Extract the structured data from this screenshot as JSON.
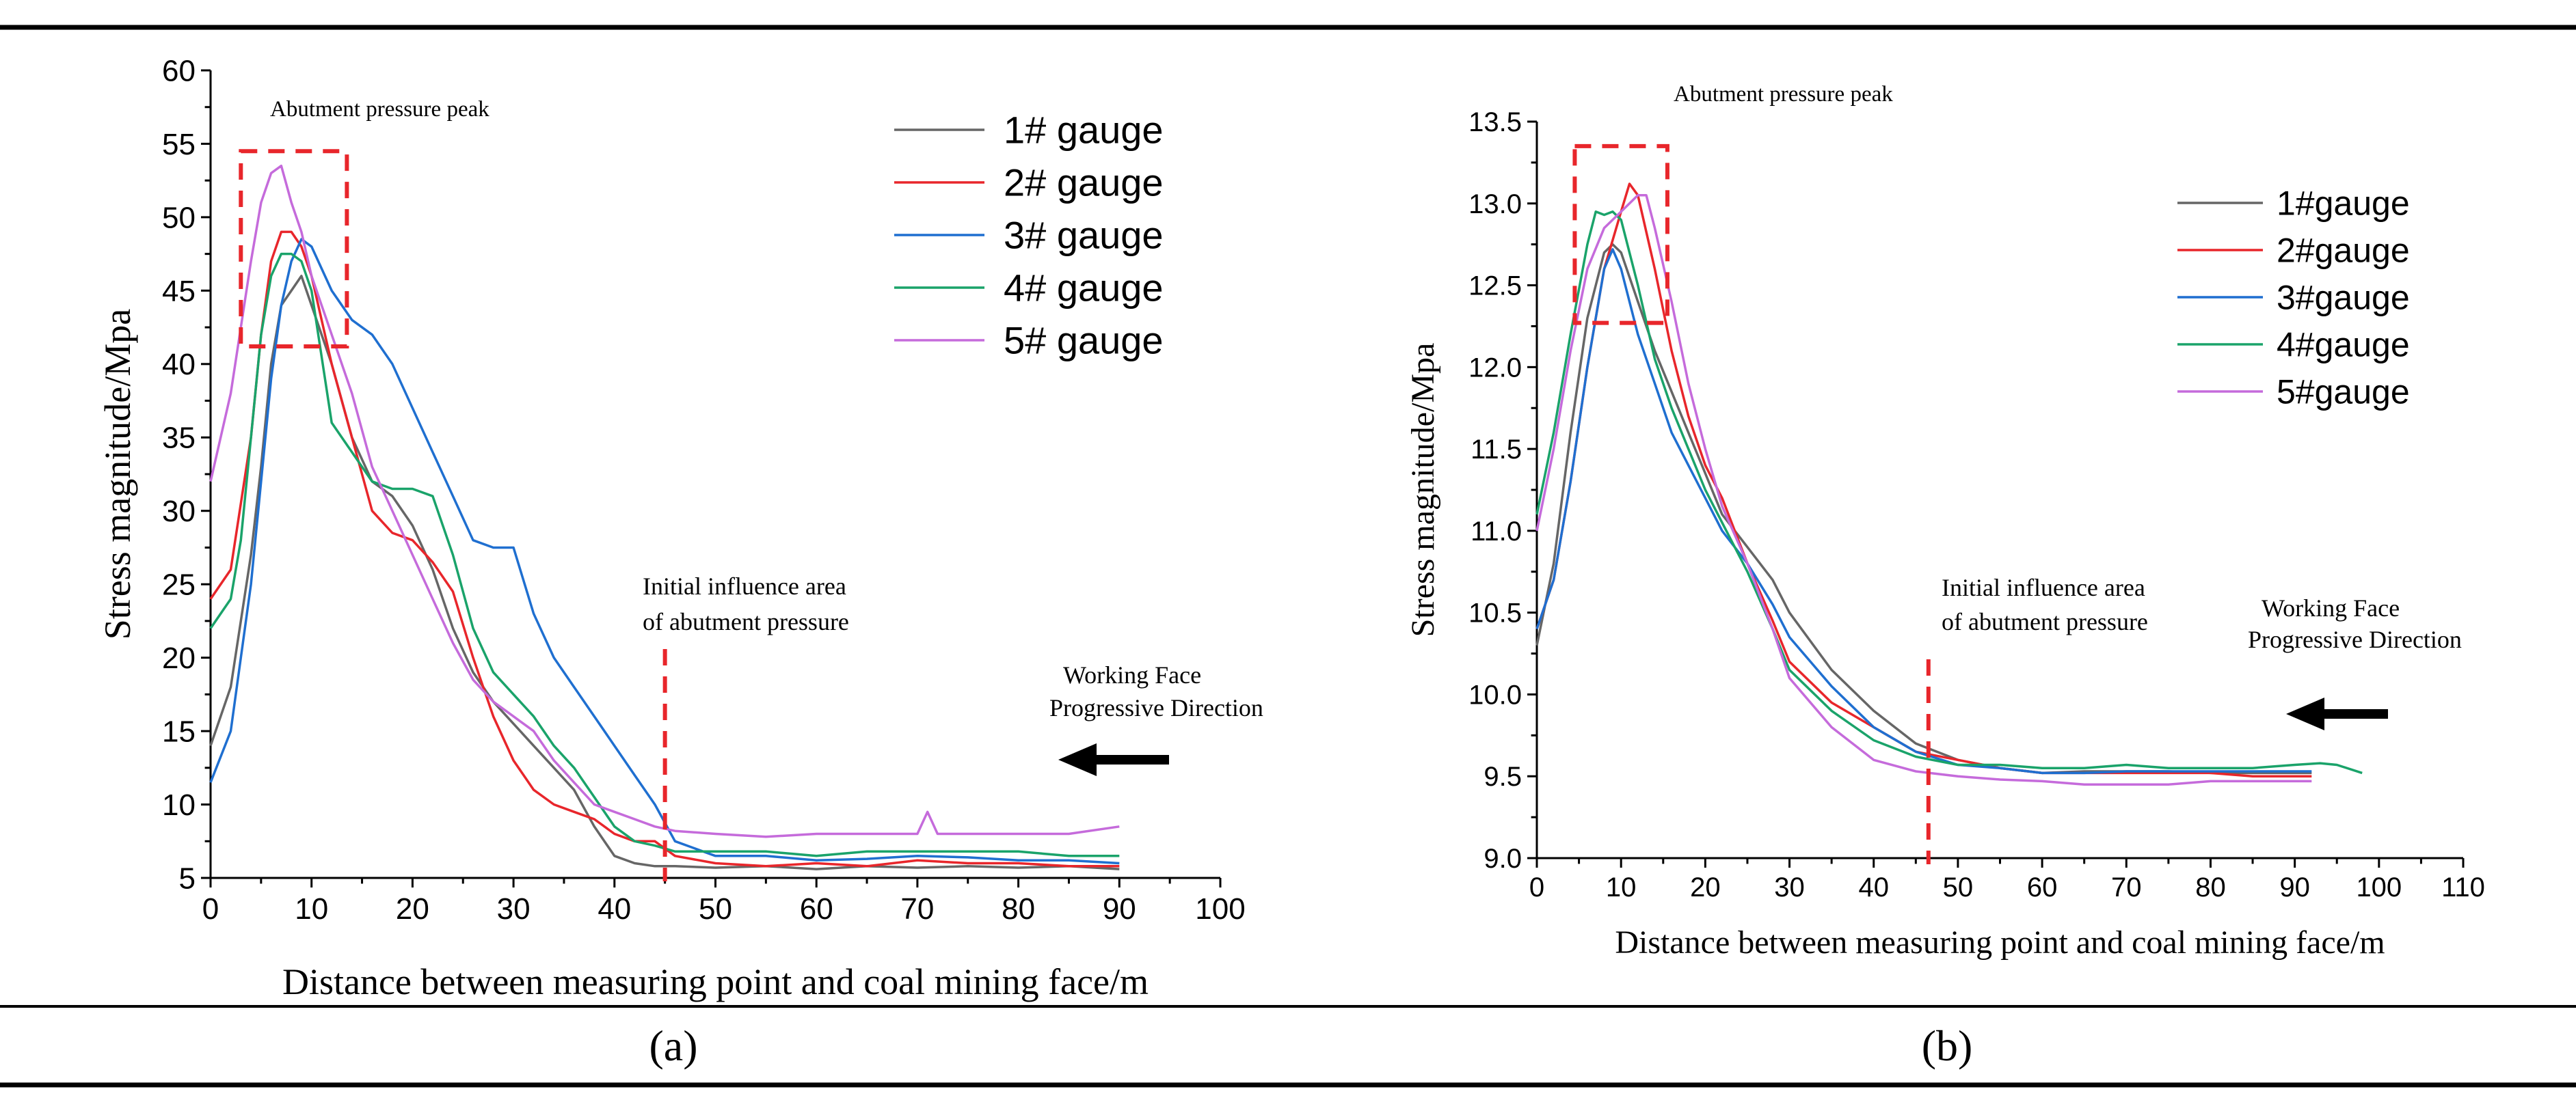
{
  "panel_labels": [
    "(a)",
    "(b)"
  ],
  "chart_data": [
    {
      "type": "line",
      "xlabel": "Distance between measuring point and coal mining face/m",
      "ylabel": "Stress magnitude/Mpa",
      "xlim": [
        0,
        100
      ],
      "ylim": [
        5,
        60
      ],
      "xticks": [
        0,
        10,
        20,
        30,
        40,
        50,
        60,
        70,
        80,
        90,
        100
      ],
      "yticks": [
        5,
        10,
        15,
        20,
        25,
        30,
        35,
        40,
        45,
        50,
        55,
        60
      ],
      "grid": false,
      "legend_position": "top-right",
      "annotations": {
        "peak_label": "Abutment pressure peak",
        "influence_line1": "Initial influence area",
        "influence_line2": "of abutment pressure",
        "influence_x": 45,
        "direction_line1": "Working Face",
        "direction_line2": "Progressive Direction",
        "peak_box": {
          "x": [
            3,
            13.5
          ],
          "y": [
            41.2,
            54.5
          ]
        }
      },
      "series": [
        {
          "name": "1# gauge",
          "color": "#666666",
          "x": [
            0,
            2,
            4,
            5,
            6,
            7,
            8,
            9,
            10,
            12,
            14,
            16,
            18,
            20,
            22,
            24,
            26,
            28,
            30,
            32,
            34,
            36,
            38,
            40,
            42,
            44,
            46,
            50,
            55,
            60,
            65,
            70,
            75,
            80,
            85,
            90
          ],
          "y": [
            14,
            18,
            27,
            33,
            40,
            44,
            45,
            46,
            44,
            40,
            35,
            32,
            31,
            29,
            26,
            22,
            19,
            17,
            15.5,
            14,
            12.5,
            11,
            8.5,
            6.5,
            6,
            5.8,
            5.8,
            5.7,
            5.8,
            5.6,
            5.8,
            5.7,
            5.8,
            5.7,
            5.8,
            5.6
          ]
        },
        {
          "name": "2# gauge",
          "color": "#e8262b",
          "x": [
            0,
            2,
            4,
            5,
            6,
            7,
            8,
            9,
            10,
            12,
            14,
            16,
            18,
            20,
            22,
            24,
            26,
            28,
            30,
            31,
            32,
            34,
            36,
            38,
            40,
            42,
            44,
            46,
            50,
            55,
            60,
            65,
            70,
            75,
            80,
            85,
            90
          ],
          "y": [
            24,
            26,
            35,
            42,
            47,
            49,
            49,
            48,
            46,
            40,
            35,
            30,
            28.5,
            28,
            26.5,
            24.5,
            20,
            16,
            13,
            12,
            11,
            10,
            9.5,
            9,
            8,
            7.5,
            7.5,
            6.5,
            6,
            5.8,
            6,
            5.8,
            6.2,
            6,
            6,
            5.8,
            5.8
          ]
        },
        {
          "name": "3# gauge",
          "color": "#1f6fd0",
          "x": [
            0,
            2,
            3,
            4,
            5,
            6,
            7,
            8,
            9,
            10,
            12,
            14,
            16,
            18,
            20,
            22,
            24,
            26,
            28,
            30,
            32,
            34,
            36,
            38,
            40,
            42,
            44,
            46,
            50,
            55,
            60,
            65,
            70,
            75,
            80,
            85,
            90
          ],
          "y": [
            11.5,
            15,
            20,
            25,
            32,
            39,
            44,
            47,
            48.5,
            48,
            45,
            43,
            42,
            40,
            37,
            34,
            31,
            28,
            27.5,
            27.5,
            23,
            20,
            18,
            16,
            14,
            12,
            10,
            7.5,
            6.5,
            6.5,
            6.2,
            6.3,
            6.5,
            6.4,
            6.2,
            6.2,
            6.0
          ]
        },
        {
          "name": "4# gauge",
          "color": "#1aa36a",
          "x": [
            0,
            2,
            3,
            4,
            5,
            6,
            7,
            8,
            9,
            10,
            12,
            14,
            16,
            18,
            20,
            22,
            24,
            26,
            28,
            30,
            32,
            34,
            36,
            38,
            40,
            42,
            44,
            46,
            50,
            55,
            60,
            65,
            70,
            75,
            80,
            85,
            90
          ],
          "y": [
            22,
            24,
            28,
            35,
            42,
            46,
            47.5,
            47.5,
            47,
            45,
            36,
            34,
            32,
            31.5,
            31.5,
            31,
            27,
            22,
            19,
            17.5,
            16,
            14,
            12.5,
            10.5,
            8.5,
            7.5,
            7.2,
            6.8,
            6.8,
            6.8,
            6.5,
            6.8,
            6.8,
            6.8,
            6.8,
            6.5,
            6.5
          ]
        },
        {
          "name": "5# gauge",
          "color": "#c56bdb",
          "x": [
            0,
            2,
            4,
            5,
            6,
            7,
            8,
            9,
            10,
            12,
            14,
            16,
            18,
            20,
            22,
            24,
            26,
            28,
            30,
            32,
            34,
            36,
            38,
            40,
            42,
            44,
            46,
            50,
            55,
            60,
            65,
            70,
            71,
            72,
            75,
            80,
            85,
            90
          ],
          "y": [
            32,
            38,
            47,
            51,
            53,
            53.5,
            51,
            49,
            46,
            42,
            38,
            33,
            30,
            27,
            24,
            21,
            18.5,
            17,
            16,
            15,
            13,
            11.5,
            10,
            9.5,
            9,
            8.5,
            8.2,
            8,
            7.8,
            8,
            8,
            8,
            9.5,
            8,
            8,
            8,
            8,
            8.5
          ]
        }
      ]
    },
    {
      "type": "line",
      "xlabel": "Distance between measuring point and coal mining face/m",
      "ylabel": "Stress magnitude/Mpa",
      "xlim": [
        0,
        110
      ],
      "ylim": [
        9.0,
        13.5
      ],
      "xticks": [
        0,
        10,
        20,
        30,
        40,
        50,
        60,
        70,
        80,
        90,
        100,
        110
      ],
      "yticks": [
        "9.0",
        "9.5",
        "10.0",
        "10.5",
        "11.0",
        "11.5",
        "12.0",
        "12.5",
        "13.0",
        "13.5"
      ],
      "grid": false,
      "legend_position": "top-right",
      "annotations": {
        "peak_label": "Abutment pressure peak",
        "influence_line1": "Initial influence area",
        "influence_line2": "of abutment pressure",
        "influence_x": 46.5,
        "direction_line1": "Working Face",
        "direction_line2": "Progressive Direction",
        "peak_box": {
          "x": [
            4.5,
            15.5
          ],
          "y": [
            12.27,
            13.35
          ]
        }
      },
      "series": [
        {
          "name": "1#gauge",
          "color": "#666666",
          "x": [
            0,
            2,
            4,
            6,
            8,
            9,
            10,
            12,
            14,
            16,
            18,
            20,
            22,
            25,
            28,
            30,
            35,
            40,
            45,
            50,
            55,
            60,
            65,
            70,
            75,
            80,
            85,
            90,
            92
          ],
          "y": [
            10.3,
            10.8,
            11.6,
            12.3,
            12.7,
            12.75,
            12.7,
            12.4,
            12.1,
            11.85,
            11.6,
            11.35,
            11.1,
            10.9,
            10.7,
            10.5,
            10.15,
            9.9,
            9.7,
            9.6,
            9.55,
            9.52,
            9.53,
            9.53,
            9.53,
            9.52,
            9.52,
            9.52,
            9.52
          ]
        },
        {
          "name": "2#gauge",
          "color": "#e8262b",
          "x": [
            0,
            2,
            4,
            6,
            8,
            10,
            11,
            12,
            14,
            16,
            18,
            20,
            22,
            25,
            28,
            30,
            35,
            40,
            45,
            50,
            55,
            60,
            65,
            70,
            75,
            80,
            85,
            90,
            92
          ],
          "y": [
            10.4,
            10.7,
            11.3,
            12.0,
            12.6,
            12.95,
            13.12,
            13.05,
            12.6,
            12.1,
            11.7,
            11.4,
            11.2,
            10.8,
            10.45,
            10.2,
            9.95,
            9.8,
            9.65,
            9.6,
            9.55,
            9.52,
            9.52,
            9.52,
            9.52,
            9.52,
            9.5,
            9.5,
            9.5
          ]
        },
        {
          "name": "3#gauge",
          "color": "#1f6fd0",
          "x": [
            0,
            2,
            4,
            6,
            8,
            9,
            10,
            12,
            14,
            16,
            18,
            20,
            22,
            25,
            28,
            30,
            35,
            40,
            45,
            50,
            55,
            60,
            65,
            70,
            75,
            80,
            85,
            90,
            92
          ],
          "y": [
            10.4,
            10.7,
            11.3,
            12.0,
            12.6,
            12.72,
            12.6,
            12.2,
            11.9,
            11.6,
            11.4,
            11.2,
            11.0,
            10.8,
            10.55,
            10.35,
            10.05,
            9.8,
            9.65,
            9.57,
            9.55,
            9.52,
            9.52,
            9.53,
            9.53,
            9.53,
            9.53,
            9.53,
            9.53
          ]
        },
        {
          "name": "4#gauge",
          "color": "#1aa36a",
          "x": [
            0,
            2,
            4,
            6,
            7,
            8,
            9,
            10,
            12,
            14,
            16,
            18,
            20,
            22,
            25,
            28,
            30,
            35,
            40,
            45,
            50,
            55,
            60,
            65,
            70,
            75,
            80,
            85,
            90,
            93,
            95,
            98
          ],
          "y": [
            11.1,
            11.6,
            12.2,
            12.75,
            12.95,
            12.93,
            12.95,
            12.9,
            12.5,
            12.05,
            11.75,
            11.5,
            11.25,
            11.05,
            10.75,
            10.4,
            10.15,
            9.9,
            9.72,
            9.62,
            9.57,
            9.57,
            9.55,
            9.55,
            9.57,
            9.55,
            9.55,
            9.55,
            9.57,
            9.58,
            9.57,
            9.52
          ]
        },
        {
          "name": "5#gauge",
          "color": "#c56bdb",
          "x": [
            0,
            2,
            4,
            6,
            8,
            10,
            12,
            13,
            14,
            16,
            18,
            20,
            22,
            25,
            28,
            30,
            35,
            40,
            45,
            50,
            55,
            60,
            65,
            70,
            75,
            80,
            85,
            90,
            92
          ],
          "y": [
            11.0,
            11.5,
            12.1,
            12.6,
            12.85,
            12.95,
            13.05,
            13.05,
            12.85,
            12.4,
            11.9,
            11.5,
            11.15,
            10.8,
            10.4,
            10.1,
            9.8,
            9.6,
            9.53,
            9.5,
            9.48,
            9.47,
            9.45,
            9.45,
            9.45,
            9.47,
            9.47,
            9.47,
            9.47
          ]
        }
      ]
    }
  ]
}
